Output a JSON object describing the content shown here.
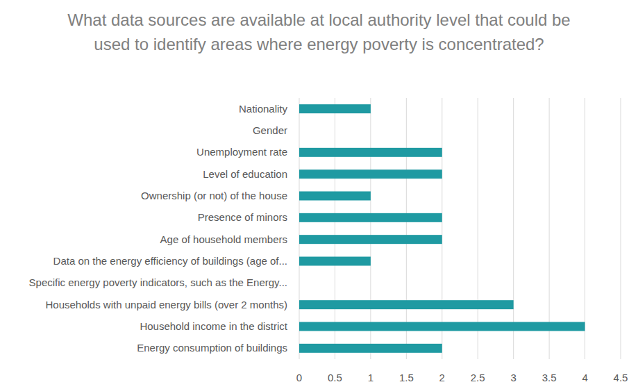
{
  "chart_data": {
    "type": "bar",
    "orientation": "horizontal",
    "title": "What data sources are available at local authority level that could be used to identify areas where energy poverty is concentrated?",
    "categories": [
      "Nationality",
      "Gender",
      "Unemployment rate",
      "Level of education",
      "Ownership (or not) of the house",
      "Presence of minors",
      "Age of household members",
      "Data on the energy efficiency of buildings (age of...",
      "Specific energy poverty indicators, such as the Energy...",
      "Households with unpaid energy bills (over 2 months)",
      "Household income in the district",
      "Energy consumption of buildings"
    ],
    "values": [
      1,
      0,
      2,
      2,
      1,
      2,
      2,
      1,
      0,
      3,
      4,
      2
    ],
    "color": "#1f9aa2",
    "xlim": [
      0,
      4.5
    ],
    "xticks": [
      0,
      0.5,
      1,
      1.5,
      2,
      2.5,
      3,
      3.5,
      4,
      4.5
    ],
    "grid": true
  }
}
